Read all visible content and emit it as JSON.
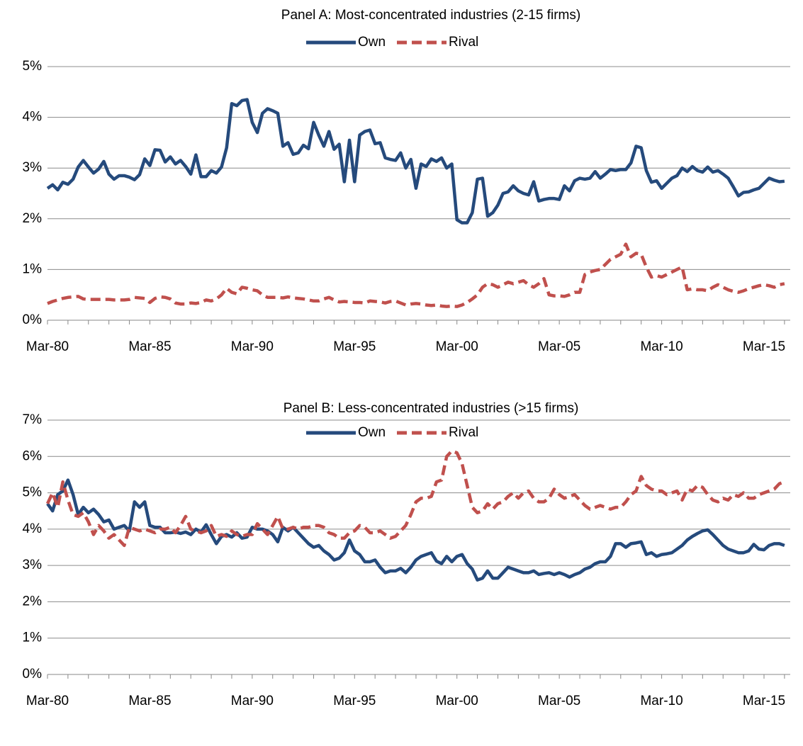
{
  "chart_data": [
    {
      "type": "line",
      "title": "Panel A: Most-concentrated industries (2-15 firms)",
      "categories": [
        "Mar-80",
        null,
        null,
        null,
        null,
        null,
        null,
        null,
        null,
        null,
        null,
        null,
        null,
        null,
        null,
        null,
        null,
        null,
        null,
        null,
        "Mar-85",
        null,
        null,
        null,
        null,
        null,
        null,
        null,
        null,
        null,
        null,
        null,
        null,
        null,
        null,
        null,
        null,
        null,
        null,
        null,
        "Mar-90",
        null,
        null,
        null,
        null,
        null,
        null,
        null,
        null,
        null,
        null,
        null,
        null,
        null,
        null,
        null,
        null,
        null,
        null,
        null,
        "Mar-95",
        null,
        null,
        null,
        null,
        null,
        null,
        null,
        null,
        null,
        null,
        null,
        null,
        null,
        null,
        null,
        null,
        null,
        null,
        null,
        "Mar-00",
        null,
        null,
        null,
        null,
        null,
        null,
        null,
        null,
        null,
        null,
        null,
        null,
        null,
        null,
        null,
        null,
        null,
        null,
        null,
        "Mar-05",
        null,
        null,
        null,
        null,
        null,
        null,
        null,
        null,
        null,
        null,
        null,
        null,
        null,
        null,
        null,
        null,
        null,
        null,
        null,
        "Mar-10",
        null,
        null,
        null,
        null,
        null,
        null,
        null,
        null,
        null,
        null,
        null,
        null,
        null,
        null,
        null,
        null,
        null,
        null,
        null,
        "Mar-15",
        null,
        null,
        null,
        null
      ],
      "series": [
        {
          "name": "Own",
          "color": "#254a7c",
          "dash": false,
          "values": [
            2.6,
            2.67,
            2.57,
            2.72,
            2.68,
            2.78,
            3.02,
            3.15,
            3.02,
            2.9,
            2.98,
            3.13,
            2.88,
            2.78,
            2.85,
            2.85,
            2.82,
            2.77,
            2.87,
            3.18,
            3.05,
            3.36,
            3.35,
            3.12,
            3.22,
            3.08,
            3.15,
            3.03,
            2.88,
            3.26,
            2.83,
            2.83,
            2.95,
            2.9,
            3.02,
            3.4,
            4.27,
            4.23,
            4.33,
            4.35,
            3.9,
            3.7,
            4.08,
            4.17,
            4.13,
            4.08,
            3.43,
            3.5,
            3.27,
            3.3,
            3.45,
            3.38,
            3.9,
            3.65,
            3.43,
            3.72,
            3.37,
            3.47,
            2.73,
            3.55,
            2.73,
            3.65,
            3.72,
            3.75,
            3.48,
            3.5,
            3.2,
            3.17,
            3.15,
            3.3,
            3.0,
            3.17,
            2.6,
            3.08,
            3.03,
            3.18,
            3.13,
            3.2,
            3.0,
            3.08,
            1.98,
            1.92,
            1.92,
            2.12,
            2.78,
            2.8,
            2.05,
            2.12,
            2.27,
            2.5,
            2.53,
            2.65,
            2.55,
            2.5,
            2.47,
            2.73,
            2.35,
            2.38,
            2.4,
            2.4,
            2.38,
            2.65,
            2.55,
            2.75,
            2.8,
            2.78,
            2.8,
            2.93,
            2.8,
            2.88,
            2.97,
            2.95,
            2.97,
            2.97,
            3.1,
            3.43,
            3.4,
            2.95,
            2.72,
            2.75,
            2.6,
            2.7,
            2.8,
            2.85,
            3.0,
            2.93,
            3.03,
            2.95,
            2.92,
            3.02,
            2.92,
            2.95,
            2.88,
            2.8,
            2.63,
            2.45,
            2.52,
            2.53,
            2.57,
            2.6,
            2.7,
            2.8,
            2.76,
            2.73,
            2.74
          ]
        },
        {
          "name": "Rival",
          "color": "#c0504d",
          "dash": true,
          "values": [
            0.33,
            0.37,
            0.4,
            0.43,
            0.45,
            0.46,
            0.47,
            0.42,
            0.41,
            0.41,
            0.41,
            0.41,
            0.41,
            0.4,
            0.4,
            0.4,
            0.41,
            0.45,
            0.44,
            0.43,
            0.35,
            0.43,
            0.46,
            0.45,
            0.42,
            0.34,
            0.32,
            0.32,
            0.34,
            0.33,
            0.35,
            0.4,
            0.38,
            0.42,
            0.5,
            0.63,
            0.55,
            0.52,
            0.65,
            0.63,
            0.6,
            0.58,
            0.5,
            0.45,
            0.45,
            0.45,
            0.44,
            0.46,
            0.44,
            0.43,
            0.42,
            0.4,
            0.38,
            0.38,
            0.42,
            0.45,
            0.4,
            0.36,
            0.37,
            0.36,
            0.35,
            0.35,
            0.34,
            0.38,
            0.37,
            0.36,
            0.34,
            0.37,
            0.38,
            0.34,
            0.3,
            0.32,
            0.33,
            0.32,
            0.3,
            0.29,
            0.3,
            0.28,
            0.27,
            0.28,
            0.27,
            0.3,
            0.35,
            0.42,
            0.5,
            0.65,
            0.72,
            0.7,
            0.65,
            0.7,
            0.75,
            0.72,
            0.75,
            0.78,
            0.7,
            0.65,
            0.72,
            0.82,
            0.5,
            0.48,
            0.48,
            0.47,
            0.5,
            0.55,
            0.55,
            0.9,
            0.95,
            0.98,
            1.0,
            1.1,
            1.2,
            1.25,
            1.3,
            1.5,
            1.25,
            1.32,
            1.3,
            1.05,
            0.85,
            0.88,
            0.85,
            0.9,
            0.95,
            1.0,
            1.05,
            0.6,
            0.62,
            0.6,
            0.6,
            0.58,
            0.65,
            0.7,
            0.65,
            0.6,
            0.57,
            0.55,
            0.58,
            0.62,
            0.65,
            0.68,
            0.7,
            0.68,
            0.65,
            0.7,
            0.72
          ]
        }
      ],
      "ylim": [
        0,
        5
      ],
      "yticks": [
        {
          "value": 0,
          "label": "0%"
        },
        {
          "value": 1,
          "label": "1%"
        },
        {
          "value": 2,
          "label": "2%"
        },
        {
          "value": 3,
          "label": "3%"
        },
        {
          "value": 4,
          "label": "4%"
        },
        {
          "value": 5,
          "label": "5%"
        }
      ],
      "grid": true,
      "legend": "top"
    },
    {
      "type": "line",
      "title": "Panel B: Less-concentrated industries (>15 firms)",
      "categories": [
        "Mar-80",
        null,
        null,
        null,
        null,
        null,
        null,
        null,
        null,
        null,
        null,
        null,
        null,
        null,
        null,
        null,
        null,
        null,
        null,
        null,
        "Mar-85",
        null,
        null,
        null,
        null,
        null,
        null,
        null,
        null,
        null,
        null,
        null,
        null,
        null,
        null,
        null,
        null,
        null,
        null,
        null,
        "Mar-90",
        null,
        null,
        null,
        null,
        null,
        null,
        null,
        null,
        null,
        null,
        null,
        null,
        null,
        null,
        null,
        null,
        null,
        null,
        null,
        "Mar-95",
        null,
        null,
        null,
        null,
        null,
        null,
        null,
        null,
        null,
        null,
        null,
        null,
        null,
        null,
        null,
        null,
        null,
        null,
        null,
        "Mar-00",
        null,
        null,
        null,
        null,
        null,
        null,
        null,
        null,
        null,
        null,
        null,
        null,
        null,
        null,
        null,
        null,
        null,
        null,
        null,
        "Mar-05",
        null,
        null,
        null,
        null,
        null,
        null,
        null,
        null,
        null,
        null,
        null,
        null,
        null,
        null,
        null,
        null,
        null,
        null,
        null,
        "Mar-10",
        null,
        null,
        null,
        null,
        null,
        null,
        null,
        null,
        null,
        null,
        null,
        null,
        null,
        null,
        null,
        null,
        null,
        null,
        null,
        "Mar-15",
        null,
        null,
        null,
        null
      ],
      "series": [
        {
          "name": "Own",
          "color": "#254a7c",
          "dash": false,
          "values": [
            4.7,
            4.5,
            4.95,
            5.05,
            5.35,
            4.95,
            4.4,
            4.6,
            4.45,
            4.55,
            4.4,
            4.2,
            4.25,
            4.0,
            4.05,
            4.1,
            3.95,
            4.75,
            4.6,
            4.75,
            4.1,
            4.05,
            4.05,
            3.9,
            3.9,
            3.92,
            3.88,
            3.92,
            3.85,
            4.0,
            3.92,
            4.12,
            3.85,
            3.6,
            3.8,
            3.85,
            3.78,
            3.9,
            3.75,
            3.78,
            4.05,
            4.0,
            4.0,
            3.95,
            3.85,
            3.65,
            4.05,
            3.95,
            4.05,
            3.9,
            3.75,
            3.6,
            3.5,
            3.55,
            3.4,
            3.3,
            3.15,
            3.2,
            3.35,
            3.7,
            3.4,
            3.3,
            3.1,
            3.1,
            3.15,
            2.95,
            2.8,
            2.85,
            2.85,
            2.92,
            2.8,
            2.95,
            3.15,
            3.25,
            3.3,
            3.35,
            3.12,
            3.05,
            3.25,
            3.1,
            3.25,
            3.3,
            3.05,
            2.9,
            2.6,
            2.65,
            2.85,
            2.65,
            2.65,
            2.8,
            2.95,
            2.9,
            2.85,
            2.8,
            2.8,
            2.85,
            2.75,
            2.78,
            2.8,
            2.75,
            2.8,
            2.75,
            2.68,
            2.75,
            2.8,
            2.9,
            2.95,
            3.05,
            3.1,
            3.1,
            3.25,
            3.6,
            3.6,
            3.5,
            3.6,
            3.62,
            3.65,
            3.3,
            3.35,
            3.25,
            3.3,
            3.32,
            3.35,
            3.45,
            3.55,
            3.7,
            3.8,
            3.88,
            3.95,
            3.98,
            3.85,
            3.7,
            3.55,
            3.45,
            3.4,
            3.35,
            3.35,
            3.4,
            3.58,
            3.45,
            3.43,
            3.55,
            3.6,
            3.6,
            3.55
          ]
        },
        {
          "name": "Rival",
          "color": "#c0504d",
          "dash": true,
          "values": [
            4.7,
            5.0,
            4.6,
            5.3,
            4.8,
            4.4,
            4.35,
            4.45,
            4.2,
            3.85,
            4.1,
            3.95,
            3.75,
            3.85,
            3.7,
            3.55,
            4.05,
            4.0,
            3.95,
            4.0,
            3.95,
            3.9,
            4.0,
            4.0,
            4.05,
            3.9,
            4.1,
            4.35,
            4.0,
            3.95,
            3.9,
            3.95,
            4.1,
            3.8,
            3.85,
            3.8,
            3.95,
            3.85,
            3.8,
            3.85,
            3.85,
            4.15,
            4.0,
            3.85,
            4.1,
            4.35,
            4.0,
            4.0,
            4.05,
            4.0,
            4.05,
            4.05,
            4.1,
            4.1,
            4.05,
            3.9,
            3.85,
            3.75,
            3.75,
            3.9,
            3.95,
            4.1,
            4.05,
            3.9,
            3.9,
            3.95,
            3.85,
            3.75,
            3.8,
            3.95,
            4.1,
            4.4,
            4.75,
            4.85,
            4.85,
            4.9,
            5.3,
            5.35,
            6.0,
            6.15,
            6.1,
            5.8,
            5.2,
            4.6,
            4.45,
            4.5,
            4.7,
            4.55,
            4.7,
            4.75,
            4.9,
            5.0,
            4.85,
            5.0,
            5.05,
            4.85,
            4.75,
            4.75,
            4.85,
            5.1,
            4.95,
            4.85,
            4.9,
            4.95,
            4.8,
            4.65,
            4.55,
            4.6,
            4.65,
            4.6,
            4.55,
            4.6,
            4.6,
            4.75,
            4.95,
            5.05,
            5.45,
            5.2,
            5.1,
            5.05,
            5.05,
            4.95,
            5.0,
            5.05,
            4.8,
            5.1,
            5.05,
            5.2,
            5.15,
            4.95,
            4.8,
            4.75,
            4.85,
            4.8,
            4.95,
            4.9,
            5.0,
            4.85,
            4.85,
            4.95,
            5.0,
            5.05,
            5.1,
            5.25,
            5.3
          ]
        }
      ],
      "ylim": [
        0,
        7
      ],
      "yticks": [
        {
          "value": 0,
          "label": "0%"
        },
        {
          "value": 1,
          "label": "1%"
        },
        {
          "value": 2,
          "label": "2%"
        },
        {
          "value": 3,
          "label": "3%"
        },
        {
          "value": 4,
          "label": "4%"
        },
        {
          "value": 5,
          "label": "5%"
        },
        {
          "value": 6,
          "label": "6%"
        },
        {
          "value": 7,
          "label": "7%"
        }
      ],
      "grid": true,
      "legend": "top"
    }
  ]
}
